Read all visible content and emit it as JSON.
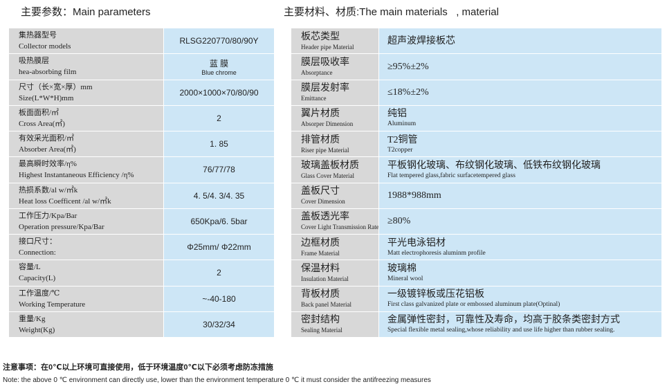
{
  "left": {
    "title": "主要参数：Main parameters",
    "rows": [
      {
        "label": [
          "集热器型号",
          "Collector models"
        ],
        "value": [
          "RLSG220770/80/90Y"
        ]
      },
      {
        "label": [
          "吸热膜层",
          "hea-absorbing film"
        ],
        "value": [
          "蓝 膜",
          "Blue chrome"
        ]
      },
      {
        "label": [
          "尺寸（长×宽×厚）mm",
          "Size(L*W*H)mm"
        ],
        "value": [
          "2000×1000×70/80/90"
        ]
      },
      {
        "label": [
          "板面面积/㎡",
          "Cross Area(㎡)"
        ],
        "value": [
          "2"
        ]
      },
      {
        "label": [
          "有效采光面积/㎡",
          "Absorber Area(㎡)"
        ],
        "value": [
          "1. 85"
        ]
      },
      {
        "label": [
          "最高瞬时效率/η%",
          "Highest Instantaneous Efficiency /η%"
        ],
        "value": [
          "76/77/78"
        ]
      },
      {
        "label": [
          "热损系数/al w/㎡k",
          "Heat loss Coefficent /al w/㎡k"
        ],
        "value": [
          "4. 5/4. 3/4. 35"
        ]
      },
      {
        "label": [
          "工作压力/Kpa/Bar",
          "Operation pressure/Kpa/Bar"
        ],
        "value": [
          "650Kpa/6. 5bar"
        ]
      },
      {
        "label": [
          "接口尺寸：",
          "Connection:"
        ],
        "value": [
          "Φ25mm/ Φ22mm"
        ]
      },
      {
        "label": [
          "容量/L",
          "Capacity(L)"
        ],
        "value": [
          "2"
        ]
      },
      {
        "label": [
          "工作温度/℃",
          "Working Temperature"
        ],
        "value": [
          "~-40-180"
        ]
      },
      {
        "label": [
          "重量/Kg",
          "Weight(Kg)"
        ],
        "value": [
          "30/32/34"
        ]
      }
    ]
  },
  "right": {
    "title": "主要材料、材质:The main materials   , material",
    "rows": [
      {
        "label": [
          "板芯类型",
          "Header pipe Material"
        ],
        "value": [
          "超声波焊接板芯"
        ]
      },
      {
        "label": [
          "膜层吸收率",
          "Absorptance"
        ],
        "value": [
          "≥95%±2%"
        ]
      },
      {
        "label": [
          "膜层发射率",
          "Emittance"
        ],
        "value": [
          "≤18%±2%"
        ]
      },
      {
        "label": [
          "翼片材质",
          "Absorper Dimension"
        ],
        "value": [
          "纯铝",
          "Aluminum"
        ]
      },
      {
        "label": [
          "排管材质",
          "Riser pipe Material"
        ],
        "value": [
          "T2铜管",
          "T2copper"
        ]
      },
      {
        "label": [
          "玻璃盖板材质",
          "Glass Cover Material"
        ],
        "value": [
          "平板钢化玻璃、布纹钢化玻璃、低铁布纹钢化玻璃",
          "Flat tempered glass,fabric surfacetempered glass"
        ]
      },
      {
        "label": [
          "盖板尺寸",
          "Cover Dimension"
        ],
        "value": [
          "1988*988mm"
        ]
      },
      {
        "label": [
          "盖板透光率",
          "Cover Light Transmission Rate"
        ],
        "value": [
          "≥80%"
        ]
      },
      {
        "label": [
          "边框材质",
          "Frame Material"
        ],
        "value": [
          "平光电泳铝材",
          "Matt electrophoresis aluminm profile"
        ]
      },
      {
        "label": [
          "保温材料",
          "Insulation Material"
        ],
        "value": [
          "玻璃棉",
          "Mineral wool"
        ]
      },
      {
        "label": [
          "背板材质",
          "Back panel Material"
        ],
        "value": [
          "一级镀锌板或压花铝板",
          "First class galvanized plate or embossed aluminum plate(Optinal)"
        ]
      },
      {
        "label": [
          "密封结构",
          "Sealing Material"
        ],
        "value": [
          "金属弹性密封，可靠性及寿命，均高于胶条类密封方式",
          "Special flexible metal sealing,whose reliability and use life higher than rubber sealing."
        ]
      }
    ]
  },
  "notes": [
    "注意事项：在0℃以上环境可直接使用，低于环境温度0℃以下必须考虑防冻措施",
    "Note: the above 0 ℃ environment can directly use, lower than the environment temperature 0 ℃ it must consider the antifreezing measures"
  ]
}
